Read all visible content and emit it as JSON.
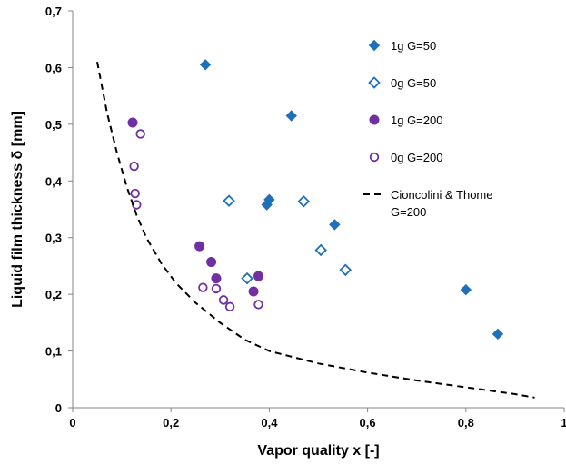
{
  "chart_data": {
    "type": "scatter",
    "xlabel": "Vapor quality x [-]",
    "ylabel": "Liquid film thickness δ [mm]",
    "xlim": [
      0,
      1
    ],
    "ylim": [
      0,
      0.7
    ],
    "x_ticks": [
      "0",
      "0,2",
      "0,4",
      "0,6",
      "0,8",
      "1"
    ],
    "y_ticks": [
      "0",
      "0,1",
      "0,2",
      "0,3",
      "0,4",
      "0,5",
      "0,6",
      "0,7"
    ],
    "grid": false,
    "legend_position": "top-right",
    "colors": {
      "blue": "#1f6fba",
      "purple": "#7030a0"
    },
    "series": [
      {
        "name": "1g G=50",
        "marker": "diamond-filled",
        "color": "#1f6fba",
        "points": [
          [
            0.27,
            0.605
          ],
          [
            0.445,
            0.515
          ],
          [
            0.395,
            0.358
          ],
          [
            0.4,
            0.367
          ],
          [
            0.533,
            0.323
          ],
          [
            0.8,
            0.208
          ],
          [
            0.865,
            0.13
          ]
        ]
      },
      {
        "name": "0g G=50",
        "marker": "diamond-open",
        "color": "#1f6fba",
        "points": [
          [
            0.318,
            0.365
          ],
          [
            0.47,
            0.364
          ],
          [
            0.505,
            0.278
          ],
          [
            0.555,
            0.243
          ],
          [
            0.355,
            0.228
          ]
        ]
      },
      {
        "name": "1g G=200",
        "marker": "circle-filled",
        "color": "#7030a0",
        "points": [
          [
            0.122,
            0.503
          ],
          [
            0.258,
            0.285
          ],
          [
            0.282,
            0.257
          ],
          [
            0.292,
            0.228
          ],
          [
            0.378,
            0.232
          ],
          [
            0.368,
            0.205
          ]
        ]
      },
      {
        "name": "0g G=200",
        "marker": "circle-open",
        "color": "#7030a0",
        "points": [
          [
            0.138,
            0.483
          ],
          [
            0.125,
            0.426
          ],
          [
            0.127,
            0.378
          ],
          [
            0.13,
            0.358
          ],
          [
            0.265,
            0.212
          ],
          [
            0.292,
            0.21
          ],
          [
            0.307,
            0.19
          ],
          [
            0.32,
            0.178
          ],
          [
            0.378,
            0.182
          ]
        ]
      },
      {
        "name": "Cioncolini & Thome G=200",
        "marker": "dashed-line",
        "color": "#000000",
        "points": [
          [
            0.05,
            0.61
          ],
          [
            0.07,
            0.52
          ],
          [
            0.09,
            0.45
          ],
          [
            0.11,
            0.39
          ],
          [
            0.13,
            0.34
          ],
          [
            0.15,
            0.3
          ],
          [
            0.18,
            0.255
          ],
          [
            0.21,
            0.22
          ],
          [
            0.25,
            0.185
          ],
          [
            0.3,
            0.15
          ],
          [
            0.35,
            0.12
          ],
          [
            0.4,
            0.1
          ],
          [
            0.5,
            0.078
          ],
          [
            0.6,
            0.062
          ],
          [
            0.7,
            0.048
          ],
          [
            0.8,
            0.036
          ],
          [
            0.9,
            0.024
          ],
          [
            0.94,
            0.018
          ]
        ]
      }
    ]
  }
}
